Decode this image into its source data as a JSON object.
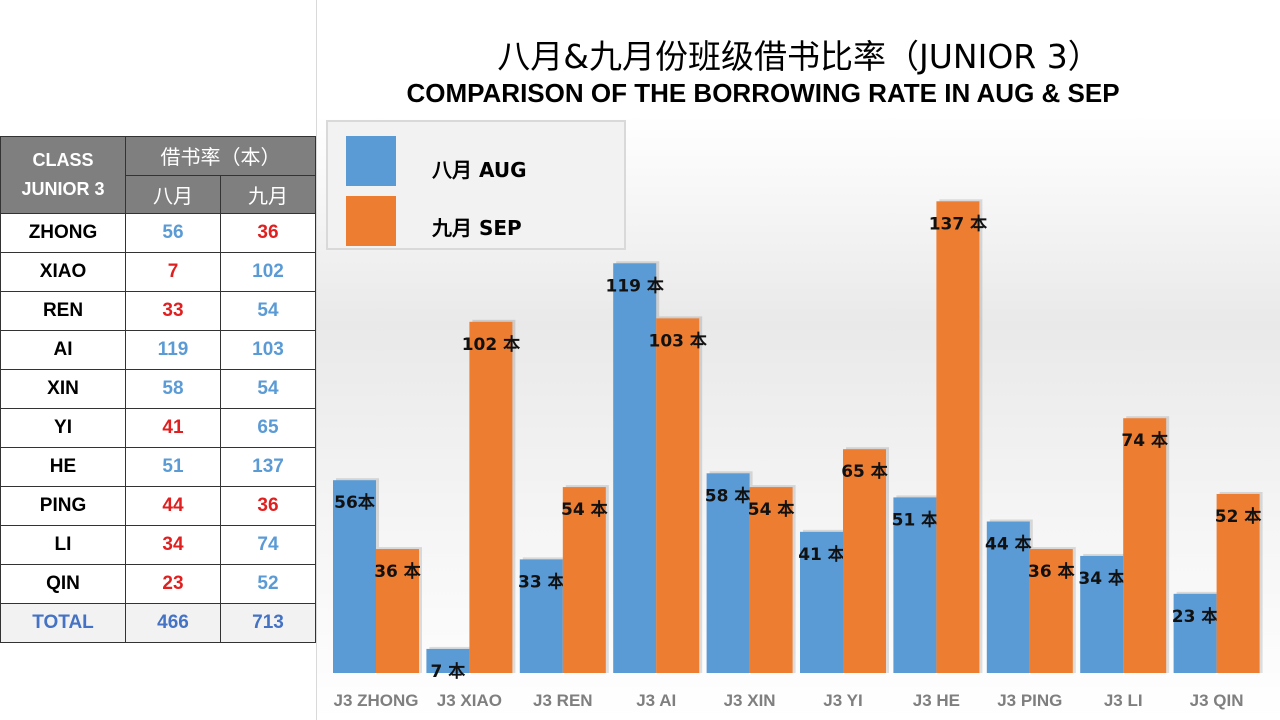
{
  "table": {
    "header_class_line1": "CLASS",
    "header_class_line2": "JUNIOR 3",
    "header_rate": "借书率（本）",
    "header_aug": "八月",
    "header_sep": "九月",
    "rows": [
      {
        "name": "ZHONG",
        "aug": "56",
        "sep": "36",
        "aug_color": "blue",
        "sep_color": "red"
      },
      {
        "name": "XIAO",
        "aug": "7",
        "sep": "102",
        "aug_color": "red",
        "sep_color": "blue"
      },
      {
        "name": "REN",
        "aug": "33",
        "sep": "54",
        "aug_color": "red",
        "sep_color": "blue"
      },
      {
        "name": "AI",
        "aug": "119",
        "sep": "103",
        "aug_color": "blue",
        "sep_color": "blue"
      },
      {
        "name": "XIN",
        "aug": "58",
        "sep": "54",
        "aug_color": "blue",
        "sep_color": "blue"
      },
      {
        "name": "YI",
        "aug": "41",
        "sep": "65",
        "aug_color": "red",
        "sep_color": "blue"
      },
      {
        "name": "HE",
        "aug": "51",
        "sep": "137",
        "aug_color": "blue",
        "sep_color": "blue"
      },
      {
        "name": "PING",
        "aug": "44",
        "sep": "36",
        "aug_color": "red",
        "sep_color": "red"
      },
      {
        "name": "LI",
        "aug": "34",
        "sep": "74",
        "aug_color": "red",
        "sep_color": "blue"
      },
      {
        "name": "QIN",
        "aug": "23",
        "sep": "52",
        "aug_color": "red",
        "sep_color": "blue"
      }
    ],
    "total": {
      "name": "TOTAL",
      "aug": "466",
      "sep": "713"
    }
  },
  "colors": {
    "aug": "#5b9bd5",
    "sep": "#ed7d31",
    "blue_text": "#5b9bd5",
    "red_text": "#e02020",
    "total_text": "#4472c4",
    "header_bg": "#7f7f7f"
  },
  "legend": {
    "aug_label": "八月  AUG",
    "sep_label": "九月  SEP"
  },
  "chart_data": {
    "type": "bar",
    "title": "八月&九月份班级借书比率（JUNIOR 3）",
    "subtitle": "COMPARISON OF THE BORROWING RATE IN AUG & SEP",
    "categories": [
      "J3 ZHONG",
      "J3 XIAO",
      "J3 REN",
      "J3 AI",
      "J3 XIN",
      "J3 YI",
      "J3 HE",
      "J3 PING",
      "J3 LI",
      "J3 QIN"
    ],
    "series": [
      {
        "name": "八月  AUG",
        "values": [
          56,
          7,
          33,
          119,
          58,
          41,
          51,
          44,
          34,
          23
        ],
        "labels": [
          "56本",
          "7 本",
          "33 本",
          "119 本",
          "58 本",
          "41 本",
          "51 本",
          "44 本",
          "34 本",
          "23 本"
        ]
      },
      {
        "name": "九月  SEP",
        "values": [
          36,
          102,
          54,
          103,
          54,
          65,
          137,
          36,
          74,
          52
        ],
        "labels": [
          "36 本",
          "102 本",
          "54 本",
          "103 本",
          "54 本",
          "65 本",
          "137 本",
          "36 本",
          "74 本",
          "52 本"
        ]
      }
    ],
    "ylim": [
      0,
      140
    ],
    "grid": false,
    "legend_position": "top-left"
  }
}
